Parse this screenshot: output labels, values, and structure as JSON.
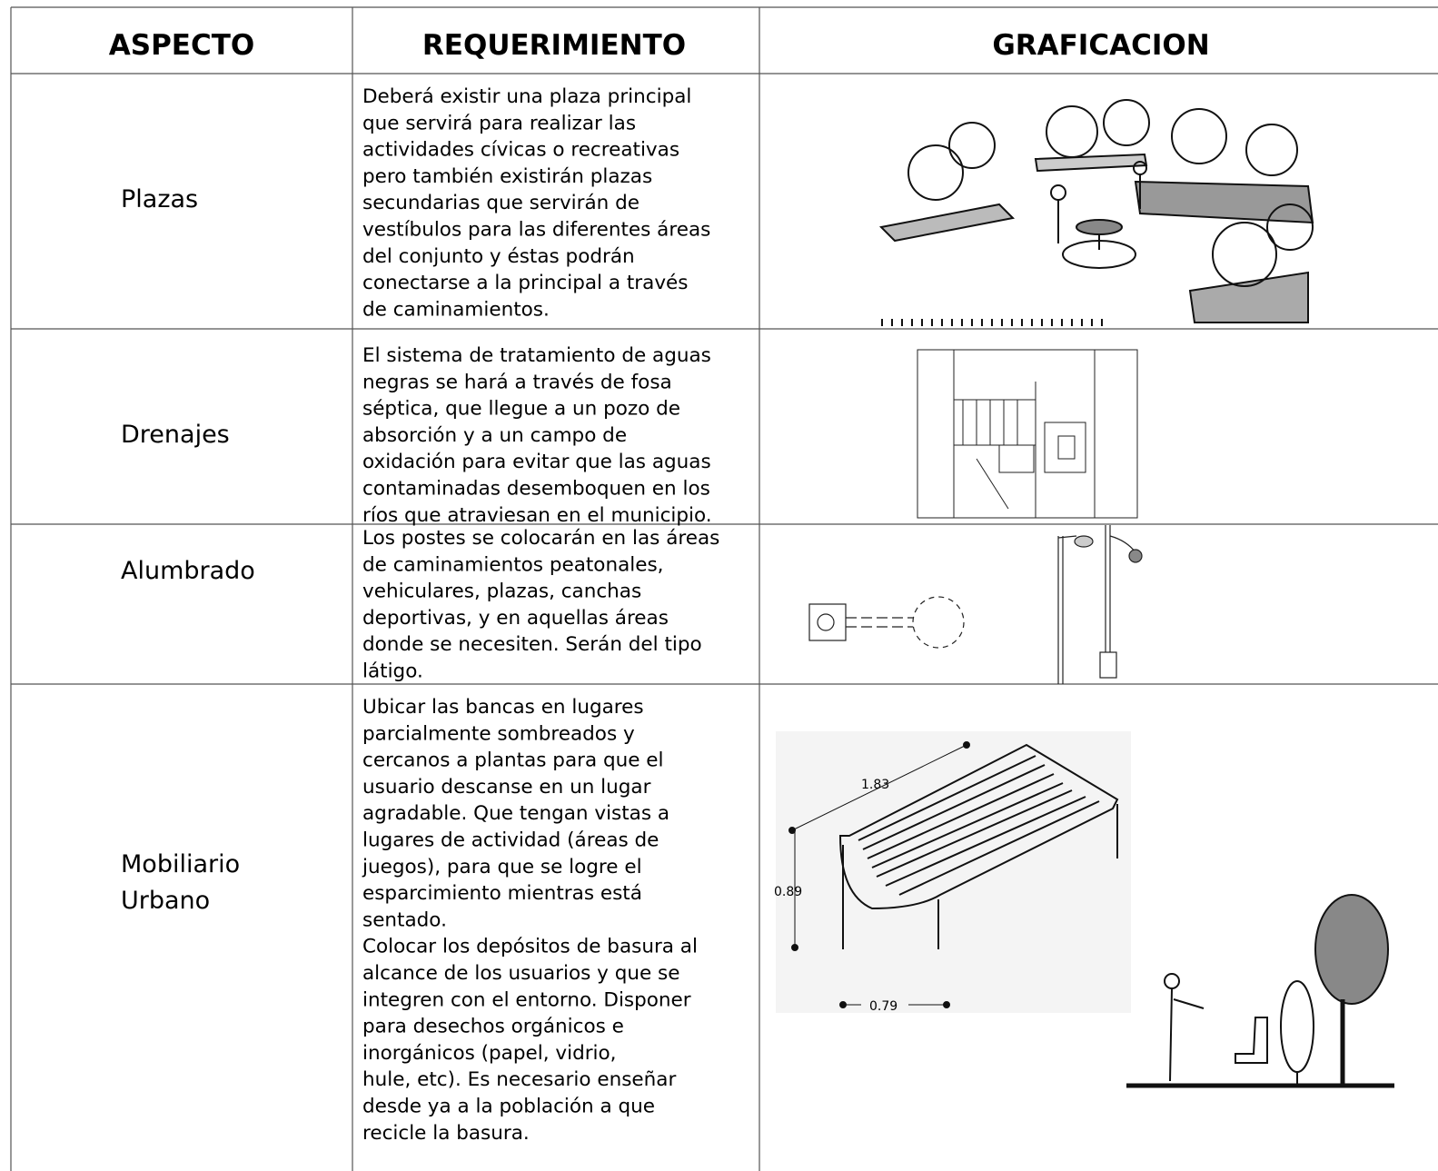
{
  "table": {
    "headers": [
      "ASPECTO",
      "REQUERIMIENTO",
      "GRAFICACION"
    ],
    "rows": [
      {
        "aspect": "Plazas",
        "requirement": [
          "Deberá existir una plaza principal",
          "que servirá para realizar las",
          "actividades cívicas o recreativas",
          "pero también existirán plazas",
          "secundarias que servirán de",
          "vestíbulos para las diferentes áreas",
          "del conjunto y éstas podrán",
          "conectarse a la principal a través",
          "de caminamientos."
        ]
      },
      {
        "aspect": "Drenajes",
        "requirement": [
          "El sistema de tratamiento de aguas",
          "negras se hará a través de fosa",
          "séptica, que llegue a un pozo de",
          "absorción y a un campo de",
          "oxidación para evitar que las aguas",
          "contaminadas desemboquen en los",
          "ríos que atraviesan en el municipio."
        ]
      },
      {
        "aspect": "Alumbrado",
        "requirement": [
          "Los postes se colocarán en las áreas",
          "de caminamientos peatonales,",
          "vehiculares, plazas, canchas",
          "deportivas, y en aquellas áreas",
          "donde se necesiten. Serán del tipo",
          "látigo."
        ]
      },
      {
        "aspect": [
          "Mobiliario",
          "Urbano"
        ],
        "requirement": [
          "Ubicar las bancas en lugares",
          "parcialmente sombreados y",
          "cercanos a plantas para que el",
          "usuario descanse en un lugar",
          "agradable. Que tengan vistas a",
          "lugares de actividad (áreas de",
          "juegos), para que se logre el",
          "esparcimiento mientras está",
          "sentado.",
          "Colocar los depósitos de basura al",
          "alcance de los usuarios y que se",
          "integren con el entorno. Disponer",
          "para desechos orgánicos e",
          "inorgánicos (papel, vidrio,",
          "hule, etc). Es necesario enseñar",
          "desde ya a la población a que",
          "recicle la basura."
        ],
        "drawing_labels": [
          "1.83",
          "0.89",
          "0.79"
        ]
      }
    ]
  }
}
